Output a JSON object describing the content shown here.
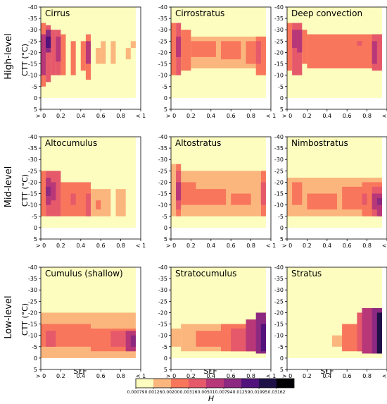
{
  "figure": {
    "row_labels": [
      "High-level",
      "Mid-level",
      "Low-level"
    ],
    "y_axis_label": "CTT (°C)",
    "x_axis_label": "SLF",
    "y_tick_labels": [
      "-40",
      "-35",
      "-30",
      "-25",
      "-20",
      "-15",
      "-10",
      "-5",
      "0",
      "5"
    ],
    "x_tick_labels": [
      "> 0",
      "0.2",
      "0.4",
      "0.6",
      "0.8",
      "< 1"
    ],
    "colorbar": {
      "label": "H",
      "tick_labels": [
        "0.00079",
        "0.00126",
        "0.00200",
        "0.00316",
        "0.00501",
        "0.00794",
        "0.01259",
        "0.01995",
        "0.03162"
      ],
      "colors": [
        "#fcfdbf",
        "#fbb67e",
        "#f8765c",
        "#e5596b",
        "#b73779",
        "#8c2981",
        "#51127c",
        "#1d1147",
        "#000004"
      ]
    }
  },
  "chart_data": [
    {
      "type": "heatmap",
      "title": "Cirrus",
      "xlim": [
        0,
        1
      ],
      "ylim": [
        5,
        -40
      ],
      "background_level": 0,
      "blocks": [
        {
          "x": [
            0.0,
            0.05
          ],
          "y": [
            -33,
            -5
          ],
          "level": 2
        },
        {
          "x": [
            0.05,
            0.1
          ],
          "y": [
            -32,
            -7
          ],
          "level": 3
        },
        {
          "x": [
            0.1,
            0.15
          ],
          "y": [
            -30,
            -10
          ],
          "level": 3
        },
        {
          "x": [
            0.15,
            0.2
          ],
          "y": [
            -30,
            -10
          ],
          "level": 3
        },
        {
          "x": [
            0.2,
            0.25
          ],
          "y": [
            -28,
            -10
          ],
          "level": 2
        },
        {
          "x": [
            0.3,
            0.35
          ],
          "y": [
            -25,
            -10
          ],
          "level": 2
        },
        {
          "x": [
            0.4,
            0.45
          ],
          "y": [
            -25,
            -12
          ],
          "level": 2
        },
        {
          "x": [
            0.45,
            0.5
          ],
          "y": [
            -28,
            -8
          ],
          "level": 2
        },
        {
          "x": [
            0.0,
            0.05
          ],
          "y": [
            -28,
            -10
          ],
          "level": 4
        },
        {
          "x": [
            0.05,
            0.1
          ],
          "y": [
            -30,
            -20
          ],
          "level": 5
        },
        {
          "x": [
            0.05,
            0.1
          ],
          "y": [
            -27,
            -22
          ],
          "level": 6
        },
        {
          "x": [
            0.15,
            0.2
          ],
          "y": [
            -27,
            -16
          ],
          "level": 4
        },
        {
          "x": [
            0.45,
            0.5
          ],
          "y": [
            -25,
            -15
          ],
          "level": 4
        },
        {
          "x": [
            0.55,
            0.6
          ],
          "y": [
            -22,
            -15
          ],
          "level": 1
        },
        {
          "x": [
            0.6,
            0.65
          ],
          "y": [
            -25,
            -15
          ],
          "level": 1
        },
        {
          "x": [
            0.7,
            0.75
          ],
          "y": [
            -25,
            -15
          ],
          "level": 1
        },
        {
          "x": [
            0.85,
            0.9
          ],
          "y": [
            -22,
            -17
          ],
          "level": 1
        },
        {
          "x": [
            0.9,
            0.95
          ],
          "y": [
            -25,
            -22
          ],
          "level": 1
        }
      ]
    },
    {
      "type": "heatmap",
      "title": "Cirrostratus",
      "xlim": [
        0,
        1
      ],
      "ylim": [
        5,
        -40
      ],
      "background_level": 0,
      "blocks": [
        {
          "x": [
            0.0,
            0.05
          ],
          "y": [
            -33,
            -10
          ],
          "level": 2
        },
        {
          "x": [
            0.05,
            0.1
          ],
          "y": [
            -33,
            -10
          ],
          "level": 3
        },
        {
          "x": [
            0.1,
            0.2
          ],
          "y": [
            -30,
            -12
          ],
          "level": 2
        },
        {
          "x": [
            0.2,
            0.95
          ],
          "y": [
            -27,
            -13
          ],
          "level": 1
        },
        {
          "x": [
            0.2,
            0.45
          ],
          "y": [
            -25,
            -18
          ],
          "level": 2
        },
        {
          "x": [
            0.5,
            0.7
          ],
          "y": [
            -25,
            -17
          ],
          "level": 2
        },
        {
          "x": [
            0.75,
            0.85
          ],
          "y": [
            -25,
            -15
          ],
          "level": 2
        },
        {
          "x": [
            0.85,
            0.95
          ],
          "y": [
            -27,
            -10
          ],
          "level": 2
        },
        {
          "x": [
            0.05,
            0.1
          ],
          "y": [
            -27,
            -18
          ],
          "level": 4
        },
        {
          "x": [
            0.85,
            0.9
          ],
          "y": [
            -25,
            -15
          ],
          "level": 3
        }
      ]
    },
    {
      "type": "heatmap",
      "title": "Deep convection",
      "xlim": [
        0,
        1
      ],
      "ylim": [
        5,
        -40
      ],
      "background_level": 0,
      "blocks": [
        {
          "x": [
            0.0,
            0.05
          ],
          "y": [
            -33,
            -12
          ],
          "level": 2
        },
        {
          "x": [
            0.05,
            0.15
          ],
          "y": [
            -33,
            -10
          ],
          "level": 3
        },
        {
          "x": [
            0.15,
            0.2
          ],
          "y": [
            -30,
            -15
          ],
          "level": 2
        },
        {
          "x": [
            0.2,
            0.95
          ],
          "y": [
            -28,
            -13
          ],
          "level": 2
        },
        {
          "x": [
            0.05,
            0.1
          ],
          "y": [
            -30,
            -22
          ],
          "level": 4
        },
        {
          "x": [
            0.1,
            0.15
          ],
          "y": [
            -30,
            -20
          ],
          "level": 4
        },
        {
          "x": [
            0.7,
            0.75
          ],
          "y": [
            -25,
            -23
          ],
          "level": 3
        },
        {
          "x": [
            0.85,
            0.95
          ],
          "y": [
            -28,
            -12
          ],
          "level": 3
        },
        {
          "x": [
            0.85,
            0.9
          ],
          "y": [
            -25,
            -15
          ],
          "level": 4
        }
      ]
    },
    {
      "type": "heatmap",
      "title": "Altocumulus",
      "xlim": [
        0,
        1
      ],
      "ylim": [
        5,
        -40
      ],
      "background_level": 0,
      "blocks": [
        {
          "x": [
            0.0,
            0.05
          ],
          "y": [
            -25,
            -5
          ],
          "level": 2
        },
        {
          "x": [
            0.05,
            0.2
          ],
          "y": [
            -25,
            -5
          ],
          "level": 3
        },
        {
          "x": [
            0.2,
            0.5
          ],
          "y": [
            -20,
            -5
          ],
          "level": 2
        },
        {
          "x": [
            0.5,
            0.7
          ],
          "y": [
            -17,
            -5
          ],
          "level": 1
        },
        {
          "x": [
            0.75,
            0.85
          ],
          "y": [
            -17,
            -5
          ],
          "level": 1
        },
        {
          "x": [
            0.05,
            0.1
          ],
          "y": [
            -22,
            -10
          ],
          "level": 4
        },
        {
          "x": [
            0.1,
            0.15
          ],
          "y": [
            -20,
            -12
          ],
          "level": 4
        },
        {
          "x": [
            0.05,
            0.1
          ],
          "y": [
            -18,
            -14
          ],
          "level": 5
        },
        {
          "x": [
            0.3,
            0.35
          ],
          "y": [
            -15,
            -10
          ],
          "level": 3
        },
        {
          "x": [
            0.45,
            0.5
          ],
          "y": [
            -15,
            -5
          ],
          "level": 3
        },
        {
          "x": [
            0.55,
            0.6
          ],
          "y": [
            -12,
            -8
          ],
          "level": 2
        }
      ]
    },
    {
      "type": "heatmap",
      "title": "Altostratus",
      "xlim": [
        0,
        1
      ],
      "ylim": [
        5,
        -40
      ],
      "background_level": 0,
      "blocks": [
        {
          "x": [
            0.0,
            0.05
          ],
          "y": [
            -28,
            -5
          ],
          "level": 1
        },
        {
          "x": [
            0.05,
            0.1
          ],
          "y": [
            -28,
            -5
          ],
          "level": 2
        },
        {
          "x": [
            0.1,
            0.9
          ],
          "y": [
            -25,
            -5
          ],
          "level": 1
        },
        {
          "x": [
            0.9,
            0.95
          ],
          "y": [
            -25,
            -5
          ],
          "level": 2
        },
        {
          "x": [
            0.05,
            0.1
          ],
          "y": [
            -25,
            -8
          ],
          "level": 3
        },
        {
          "x": [
            0.1,
            0.25
          ],
          "y": [
            -20,
            -10
          ],
          "level": 2
        },
        {
          "x": [
            0.25,
            0.55
          ],
          "y": [
            -17,
            -10
          ],
          "level": 2
        },
        {
          "x": [
            0.6,
            0.8
          ],
          "y": [
            -15,
            -10
          ],
          "level": 2
        },
        {
          "x": [
            0.05,
            0.1
          ],
          "y": [
            -20,
            -12
          ],
          "level": 4
        },
        {
          "x": [
            0.9,
            0.95
          ],
          "y": [
            -20,
            -10
          ],
          "level": 3
        }
      ]
    },
    {
      "type": "heatmap",
      "title": "Nimbostratus",
      "xlim": [
        0,
        1
      ],
      "ylim": [
        5,
        -40
      ],
      "background_level": 0,
      "blocks": [
        {
          "x": [
            0.0,
            0.95
          ],
          "y": [
            -22,
            -5
          ],
          "level": 1
        },
        {
          "x": [
            0.05,
            0.15
          ],
          "y": [
            -20,
            -10
          ],
          "level": 2
        },
        {
          "x": [
            0.2,
            0.5
          ],
          "y": [
            -15,
            -8
          ],
          "level": 2
        },
        {
          "x": [
            0.55,
            0.75
          ],
          "y": [
            -18,
            -8
          ],
          "level": 2
        },
        {
          "x": [
            0.75,
            0.95
          ],
          "y": [
            -20,
            -5
          ],
          "level": 2
        },
        {
          "x": [
            0.75,
            0.8
          ],
          "y": [
            -15,
            -10
          ],
          "level": 3
        },
        {
          "x": [
            0.85,
            0.95
          ],
          "y": [
            -18,
            -5
          ],
          "level": 3
        },
        {
          "x": [
            0.85,
            0.9
          ],
          "y": [
            -15,
            -8
          ],
          "level": 4
        },
        {
          "x": [
            0.9,
            0.95
          ],
          "y": [
            -15,
            -5
          ],
          "level": 4
        },
        {
          "x": [
            0.9,
            0.95
          ],
          "y": [
            -13,
            -10
          ],
          "level": 5
        }
      ]
    },
    {
      "type": "heatmap",
      "title": "Cumulus (shallow)",
      "xlim": [
        0,
        1
      ],
      "ylim": [
        5,
        -40
      ],
      "background_level": 0,
      "blocks": [
        {
          "x": [
            0.0,
            0.95
          ],
          "y": [
            -20,
            0
          ],
          "level": 1
        },
        {
          "x": [
            0.0,
            0.5
          ],
          "y": [
            -15,
            -5
          ],
          "level": 2
        },
        {
          "x": [
            0.5,
            0.95
          ],
          "y": [
            -13,
            -3
          ],
          "level": 2
        },
        {
          "x": [
            0.05,
            0.15
          ],
          "y": [
            -12,
            -5
          ],
          "level": 3
        },
        {
          "x": [
            0.7,
            0.95
          ],
          "y": [
            -12,
            -5
          ],
          "level": 3
        },
        {
          "x": [
            0.85,
            0.95
          ],
          "y": [
            -12,
            -3
          ],
          "level": 4
        },
        {
          "x": [
            0.9,
            0.95
          ],
          "y": [
            -10,
            -5
          ],
          "level": 5
        }
      ]
    },
    {
      "type": "heatmap",
      "title": "Stratocumulus",
      "xlim": [
        0,
        1
      ],
      "ylim": [
        5,
        -40
      ],
      "background_level": 0,
      "blocks": [
        {
          "x": [
            0.0,
            0.1
          ],
          "y": [
            -13,
            -5
          ],
          "level": 1
        },
        {
          "x": [
            0.1,
            0.95
          ],
          "y": [
            -15,
            -3
          ],
          "level": 1
        },
        {
          "x": [
            0.25,
            0.95
          ],
          "y": [
            -12,
            -5
          ],
          "level": 2
        },
        {
          "x": [
            0.5,
            0.95
          ],
          "y": [
            -15,
            -3
          ],
          "level": 2
        },
        {
          "x": [
            0.6,
            0.95
          ],
          "y": [
            -13,
            -3
          ],
          "level": 3
        },
        {
          "x": [
            0.75,
            0.95
          ],
          "y": [
            -17,
            -3
          ],
          "level": 4
        },
        {
          "x": [
            0.85,
            0.95
          ],
          "y": [
            -20,
            -2
          ],
          "level": 5
        },
        {
          "x": [
            0.9,
            0.95
          ],
          "y": [
            -15,
            -3
          ],
          "level": 6
        }
      ]
    },
    {
      "type": "heatmap",
      "title": "Stratus",
      "xlim": [
        0,
        1
      ],
      "ylim": [
        5,
        -40
      ],
      "background_level": 0,
      "blocks": [
        {
          "x": [
            0.45,
            0.95
          ],
          "y": [
            -10,
            -5
          ],
          "level": 1
        },
        {
          "x": [
            0.55,
            0.95
          ],
          "y": [
            -15,
            -3
          ],
          "level": 2
        },
        {
          "x": [
            0.7,
            0.95
          ],
          "y": [
            -20,
            -3
          ],
          "level": 3
        },
        {
          "x": [
            0.75,
            0.95
          ],
          "y": [
            -22,
            -2
          ],
          "level": 4
        },
        {
          "x": [
            0.85,
            0.95
          ],
          "y": [
            -22,
            -2
          ],
          "level": 5
        },
        {
          "x": [
            0.9,
            0.95
          ],
          "y": [
            -20,
            -2
          ],
          "level": 7
        }
      ]
    }
  ]
}
